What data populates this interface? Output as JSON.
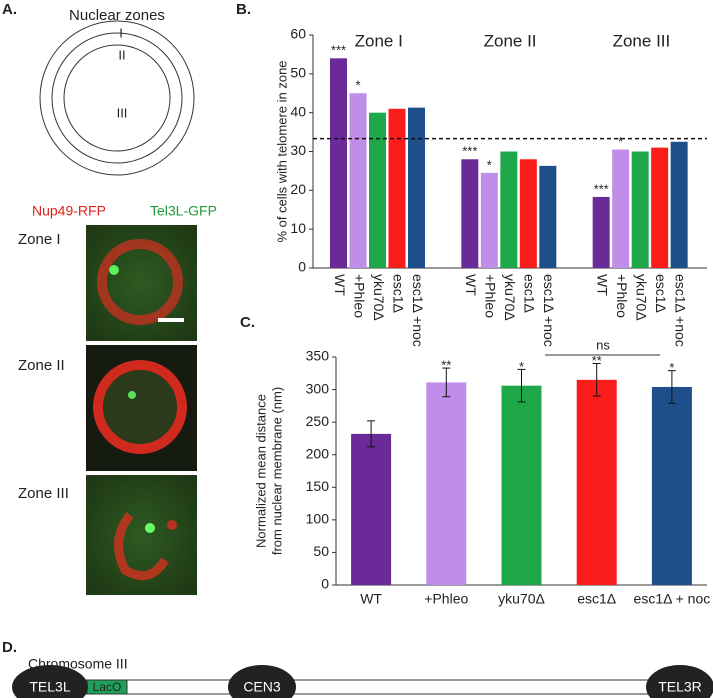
{
  "panels": {
    "A": "A.",
    "B": "B.",
    "C": "C.",
    "D": "D."
  },
  "zones_diagram": {
    "title": "Nuclear zones",
    "labels": [
      "I",
      "II",
      "III"
    ]
  },
  "microscopy": {
    "legend": [
      "Nup49-RFP",
      "Tel3L-GFP"
    ],
    "rows": [
      "Zone I",
      "Zone II",
      "Zone III"
    ]
  },
  "chart_data": [
    {
      "type": "bar",
      "ylabel": [
        "% of cells with telomere in zone"
      ],
      "categories": [
        "Zone I",
        "Zone II",
        "Zone III"
      ],
      "series": [
        {
          "name": "WT",
          "color": "#6a2a98",
          "values": [
            54,
            28,
            18.3
          ],
          "significance": [
            "***",
            "***",
            "***"
          ]
        },
        {
          "name": "+Phleo",
          "color": "#c08ee8",
          "values": [
            45,
            24.5,
            30.5
          ],
          "significance": [
            "*",
            "*",
            "*"
          ]
        },
        {
          "name": "yku70Δ",
          "color": "#1fa84a",
          "values": [
            40,
            30,
            30
          ],
          "significance": [
            null,
            null,
            null
          ]
        },
        {
          "name": "esc1Δ",
          "color": "#fb1c1c",
          "values": [
            41,
            28,
            31
          ],
          "significance": [
            null,
            null,
            null
          ]
        },
        {
          "name": "esc1Δ +noc",
          "color": "#1f4f8a",
          "values": [
            41.3,
            26.3,
            32.5
          ],
          "significance": [
            null,
            null,
            null
          ]
        }
      ],
      "reference_line": 33.3,
      "ylim": [
        0,
        60
      ],
      "yticks": [
        0,
        10,
        20,
        30,
        40,
        50,
        60
      ]
    },
    {
      "type": "bar",
      "ylabel": [
        "Normalized mean distance",
        "from nuclear membrane (nm)"
      ],
      "categories": [
        "WT",
        "+Phleo",
        "yku70Δ",
        "esc1Δ",
        "esc1Δ + noc"
      ],
      "values": [
        232,
        311,
        306,
        315,
        304
      ],
      "errors": [
        20,
        22,
        25,
        25,
        25
      ],
      "colors": [
        "#6a2a98",
        "#c08ee8",
        "#1fa84a",
        "#fb1c1c",
        "#1f4f8a"
      ],
      "significance": [
        null,
        "**",
        "*",
        "**",
        "*"
      ],
      "annotation": "ns",
      "ylim": [
        0,
        350
      ],
      "yticks": [
        0,
        50,
        100,
        150,
        200,
        250,
        300,
        350
      ]
    }
  ],
  "chromosome": {
    "title": "Chromosome III",
    "elements": [
      "TEL3L",
      "LacO",
      "CEN3",
      "TEL3R"
    ]
  }
}
